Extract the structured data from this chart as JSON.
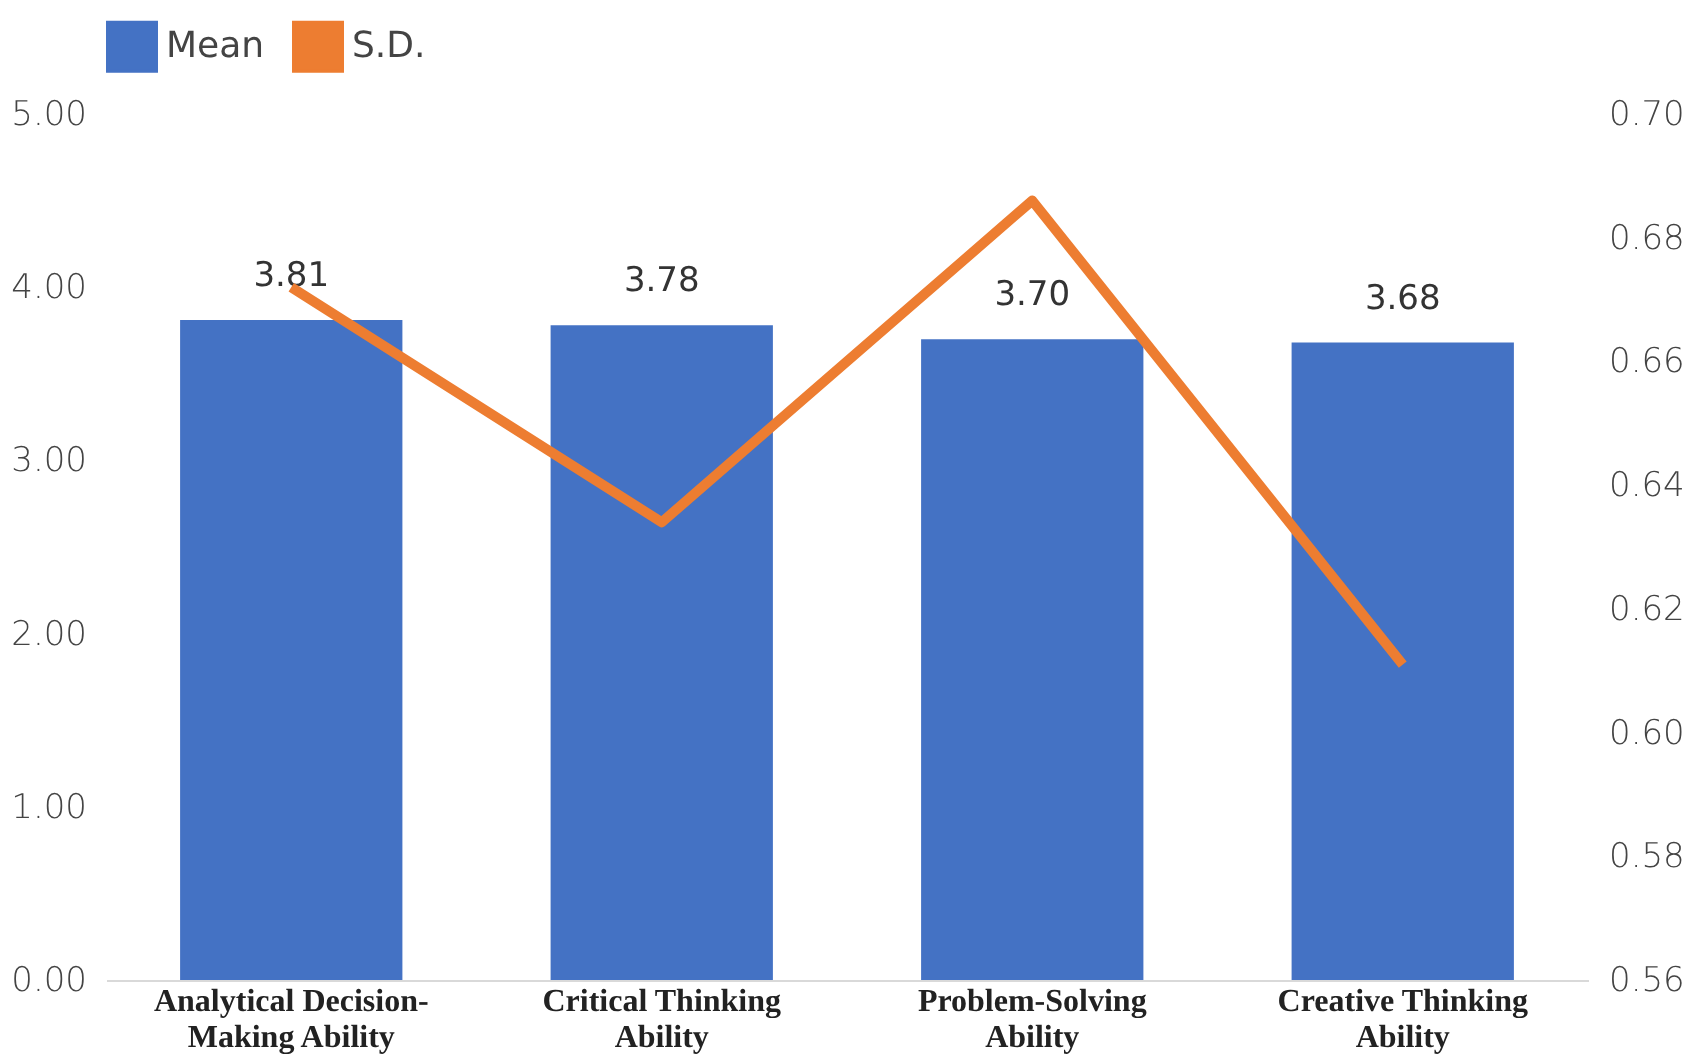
{
  "chart_data": {
    "type": "bar",
    "categories": [
      "Analytical Decision-Making Ability",
      "Critical Thinking Ability",
      "Problem-Solving Ability",
      "Creative Thinking Ability"
    ],
    "series": [
      {
        "name": "Mean",
        "color": "#4472c4",
        "values": [
          3.81,
          3.78,
          3.7,
          3.68
        ],
        "value_labels": [
          "3.81",
          "3.78",
          "3.70",
          "3.68"
        ]
      },
      {
        "name": "S.D.",
        "type": "line",
        "axis": "y2",
        "color": "#ed7d31",
        "values": [
          0.672,
          0.634,
          0.686,
          0.611
        ]
      }
    ],
    "ylim": [
      0,
      5
    ],
    "yticks": [
      {
        "value": 0,
        "label": "0.00"
      },
      {
        "value": 1,
        "label": "1.00"
      },
      {
        "value": 2,
        "label": "2.00"
      },
      {
        "value": 3,
        "label": "3.00"
      },
      {
        "value": 4,
        "label": "4.00"
      },
      {
        "value": 5,
        "label": "5.00"
      }
    ],
    "y2lim": [
      0.56,
      0.7
    ],
    "y2ticks": [
      0.56,
      0.58,
      {
        "value": 0.6,
        "label": "0.60"
      },
      0.62,
      0.64,
      0.66,
      0.68,
      {
        "value": 0.7,
        "label": "0.70"
      }
    ],
    "grid": false,
    "legend": "top",
    "marker": "none",
    "line_style": "solid"
  }
}
